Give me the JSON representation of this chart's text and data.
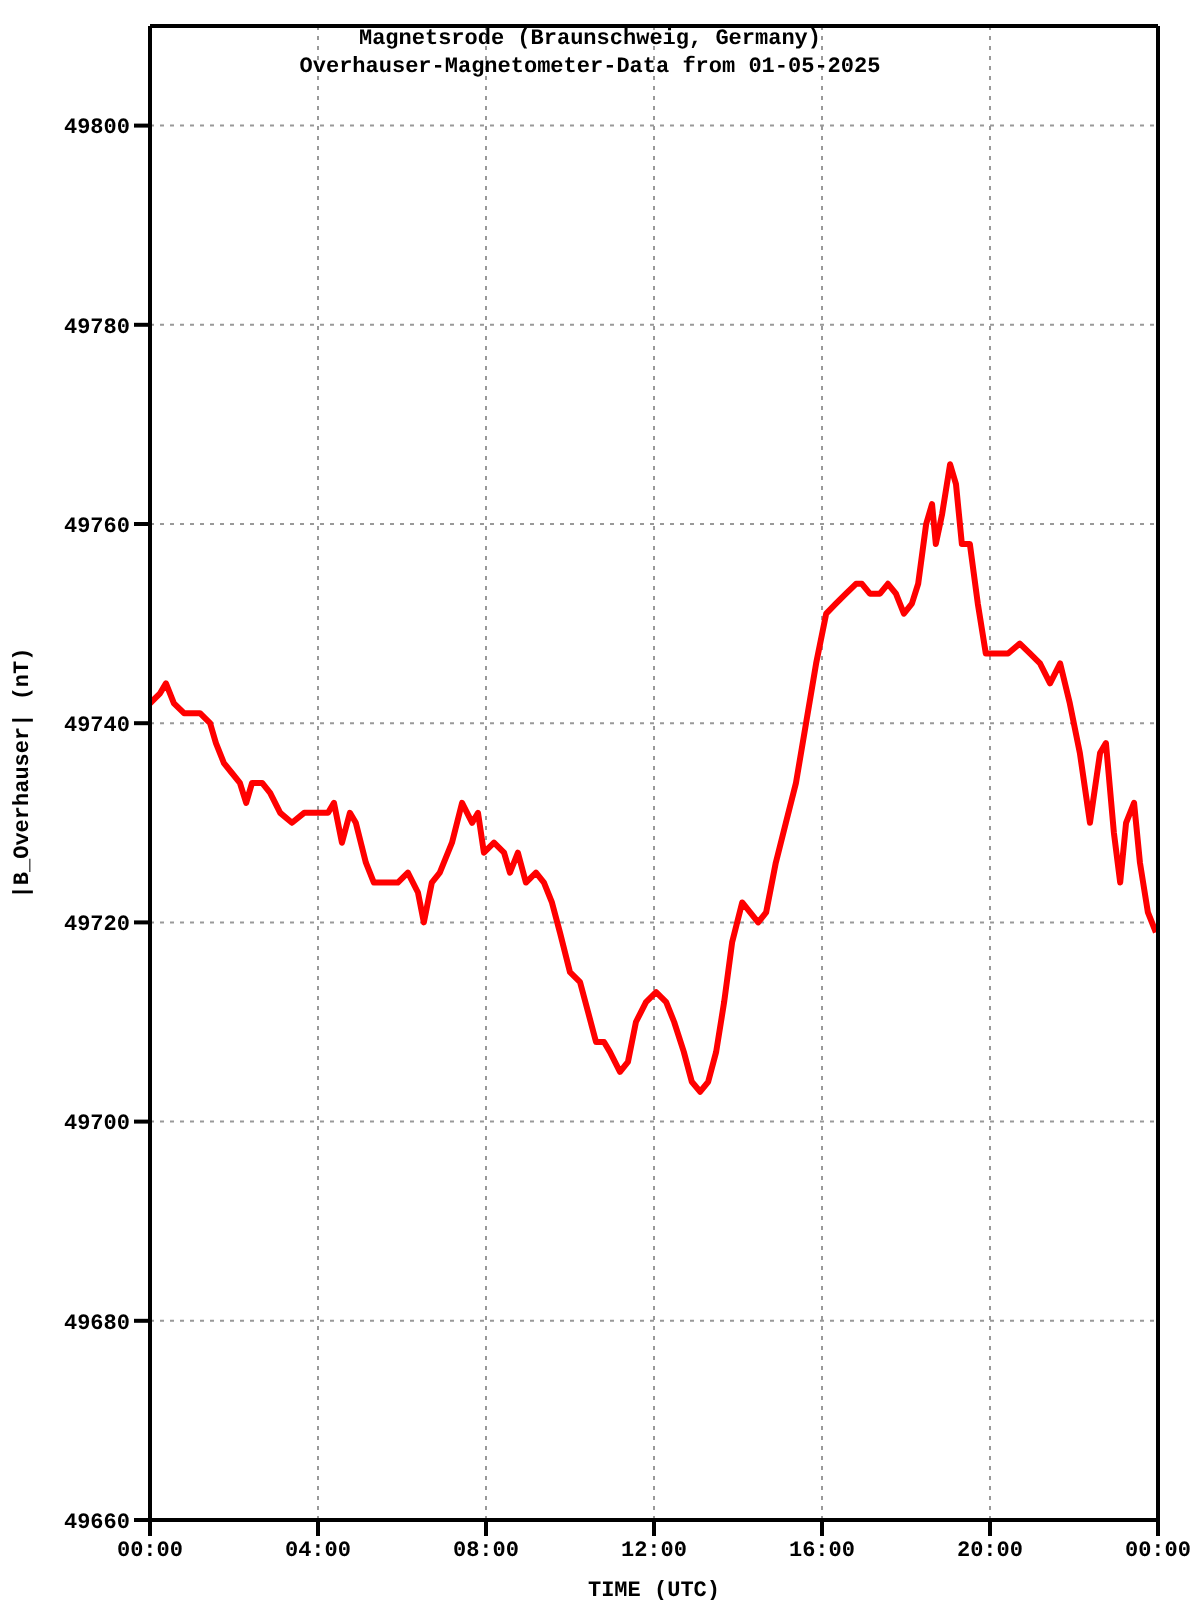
{
  "chart_data": {
    "type": "line",
    "title": "Magnetsrode (Braunschweig, Germany)",
    "subtitle": "Overhauser-Magnetometer-Data from 01-05-2025",
    "xlabel": "TIME (UTC)",
    "ylabel": "|B_Overhauser| (nT)",
    "x": [
      0,
      0.24,
      0.38,
      0.57,
      0.81,
      1.19,
      1.43,
      1.57,
      1.76,
      1.95,
      2.14,
      2.29,
      2.43,
      2.67,
      2.86,
      3.1,
      3.38,
      3.67,
      3.95,
      4.24,
      4.38,
      4.57,
      4.76,
      4.9,
      5.14,
      5.33,
      5.62,
      5.9,
      6.14,
      6.38,
      6.52,
      6.71,
      6.9,
      7.19,
      7.43,
      7.67,
      7.81,
      7.95,
      8.19,
      8.43,
      8.57,
      8.76,
      8.95,
      9.19,
      9.38,
      9.57,
      9.76,
      10,
      10.24,
      10.43,
      10.62,
      10.81,
      10.95,
      11.19,
      11.38,
      11.57,
      11.81,
      12.05,
      12.29,
      12.48,
      12.71,
      12.9,
      13.1,
      13.29,
      13.48,
      13.67,
      13.86,
      14.1,
      14.29,
      14.48,
      14.67,
      14.9,
      15.14,
      15.38,
      15.62,
      15.86,
      16.1,
      16.33,
      16.57,
      16.81,
      16.95,
      17.14,
      17.38,
      17.57,
      17.76,
      17.95,
      18.14,
      18.29,
      18.48,
      18.62,
      18.71,
      18.86,
      19.05,
      19.19,
      19.33,
      19.52,
      19.71,
      19.9,
      20.14,
      20.43,
      20.71,
      20.95,
      21.19,
      21.43,
      21.67,
      21.9,
      22.14,
      22.38,
      22.62,
      22.76,
      22.95,
      23.1,
      23.24,
      23.43,
      23.57,
      23.76,
      23.95
    ],
    "series": [
      {
        "color": "#ff0000",
        "values": [
          49742,
          49743,
          49744,
          49742,
          49741,
          49741,
          49740,
          49738,
          49736,
          49735,
          49734,
          49732,
          49734,
          49734,
          49733,
          49731,
          49730,
          49731,
          49731,
          49731,
          49732,
          49728,
          49731,
          49730,
          49726,
          49724,
          49724,
          49724,
          49725,
          49723,
          49720,
          49724,
          49725,
          49728,
          49732,
          49730,
          49731,
          49727,
          49728,
          49727,
          49725,
          49727,
          49724,
          49725,
          49724,
          49722,
          49719,
          49715,
          49714,
          49711,
          49708,
          49708,
          49707,
          49705,
          49706,
          49710,
          49712,
          49713,
          49712,
          49710,
          49707,
          49704,
          49703,
          49704,
          49707,
          49712,
          49718,
          49722,
          49721,
          49720,
          49721,
          49726,
          49730,
          49734,
          49740,
          49746,
          49751,
          49752,
          49753,
          49754,
          49754,
          49753,
          49753,
          49754,
          49753,
          49751,
          49752,
          49754,
          49760,
          49762,
          49758,
          49761,
          49766,
          49764,
          49758,
          49758,
          49752,
          49747,
          49747,
          49747,
          49748,
          49747,
          49746,
          49744,
          49746,
          49742,
          49737,
          49730,
          49737,
          49738,
          49729,
          49724,
          49730,
          49732,
          49726,
          49721,
          49719
        ]
      }
    ],
    "xlim": [
      0,
      24
    ],
    "xticks": [
      {
        "value": 0,
        "label": "00:00"
      },
      {
        "value": 4,
        "label": "04:00"
      },
      {
        "value": 8,
        "label": "08:00"
      },
      {
        "value": 12,
        "label": "12:00"
      },
      {
        "value": 16,
        "label": "16:00"
      },
      {
        "value": 20,
        "label": "20:00"
      },
      {
        "value": 24,
        "label": "00:00"
      }
    ],
    "ylim": [
      49660,
      49810
    ],
    "yticks": [
      49660,
      49680,
      49700,
      49720,
      49740,
      49760,
      49780,
      49800
    ],
    "grid": true,
    "marker": "none",
    "line_style": "solid"
  }
}
